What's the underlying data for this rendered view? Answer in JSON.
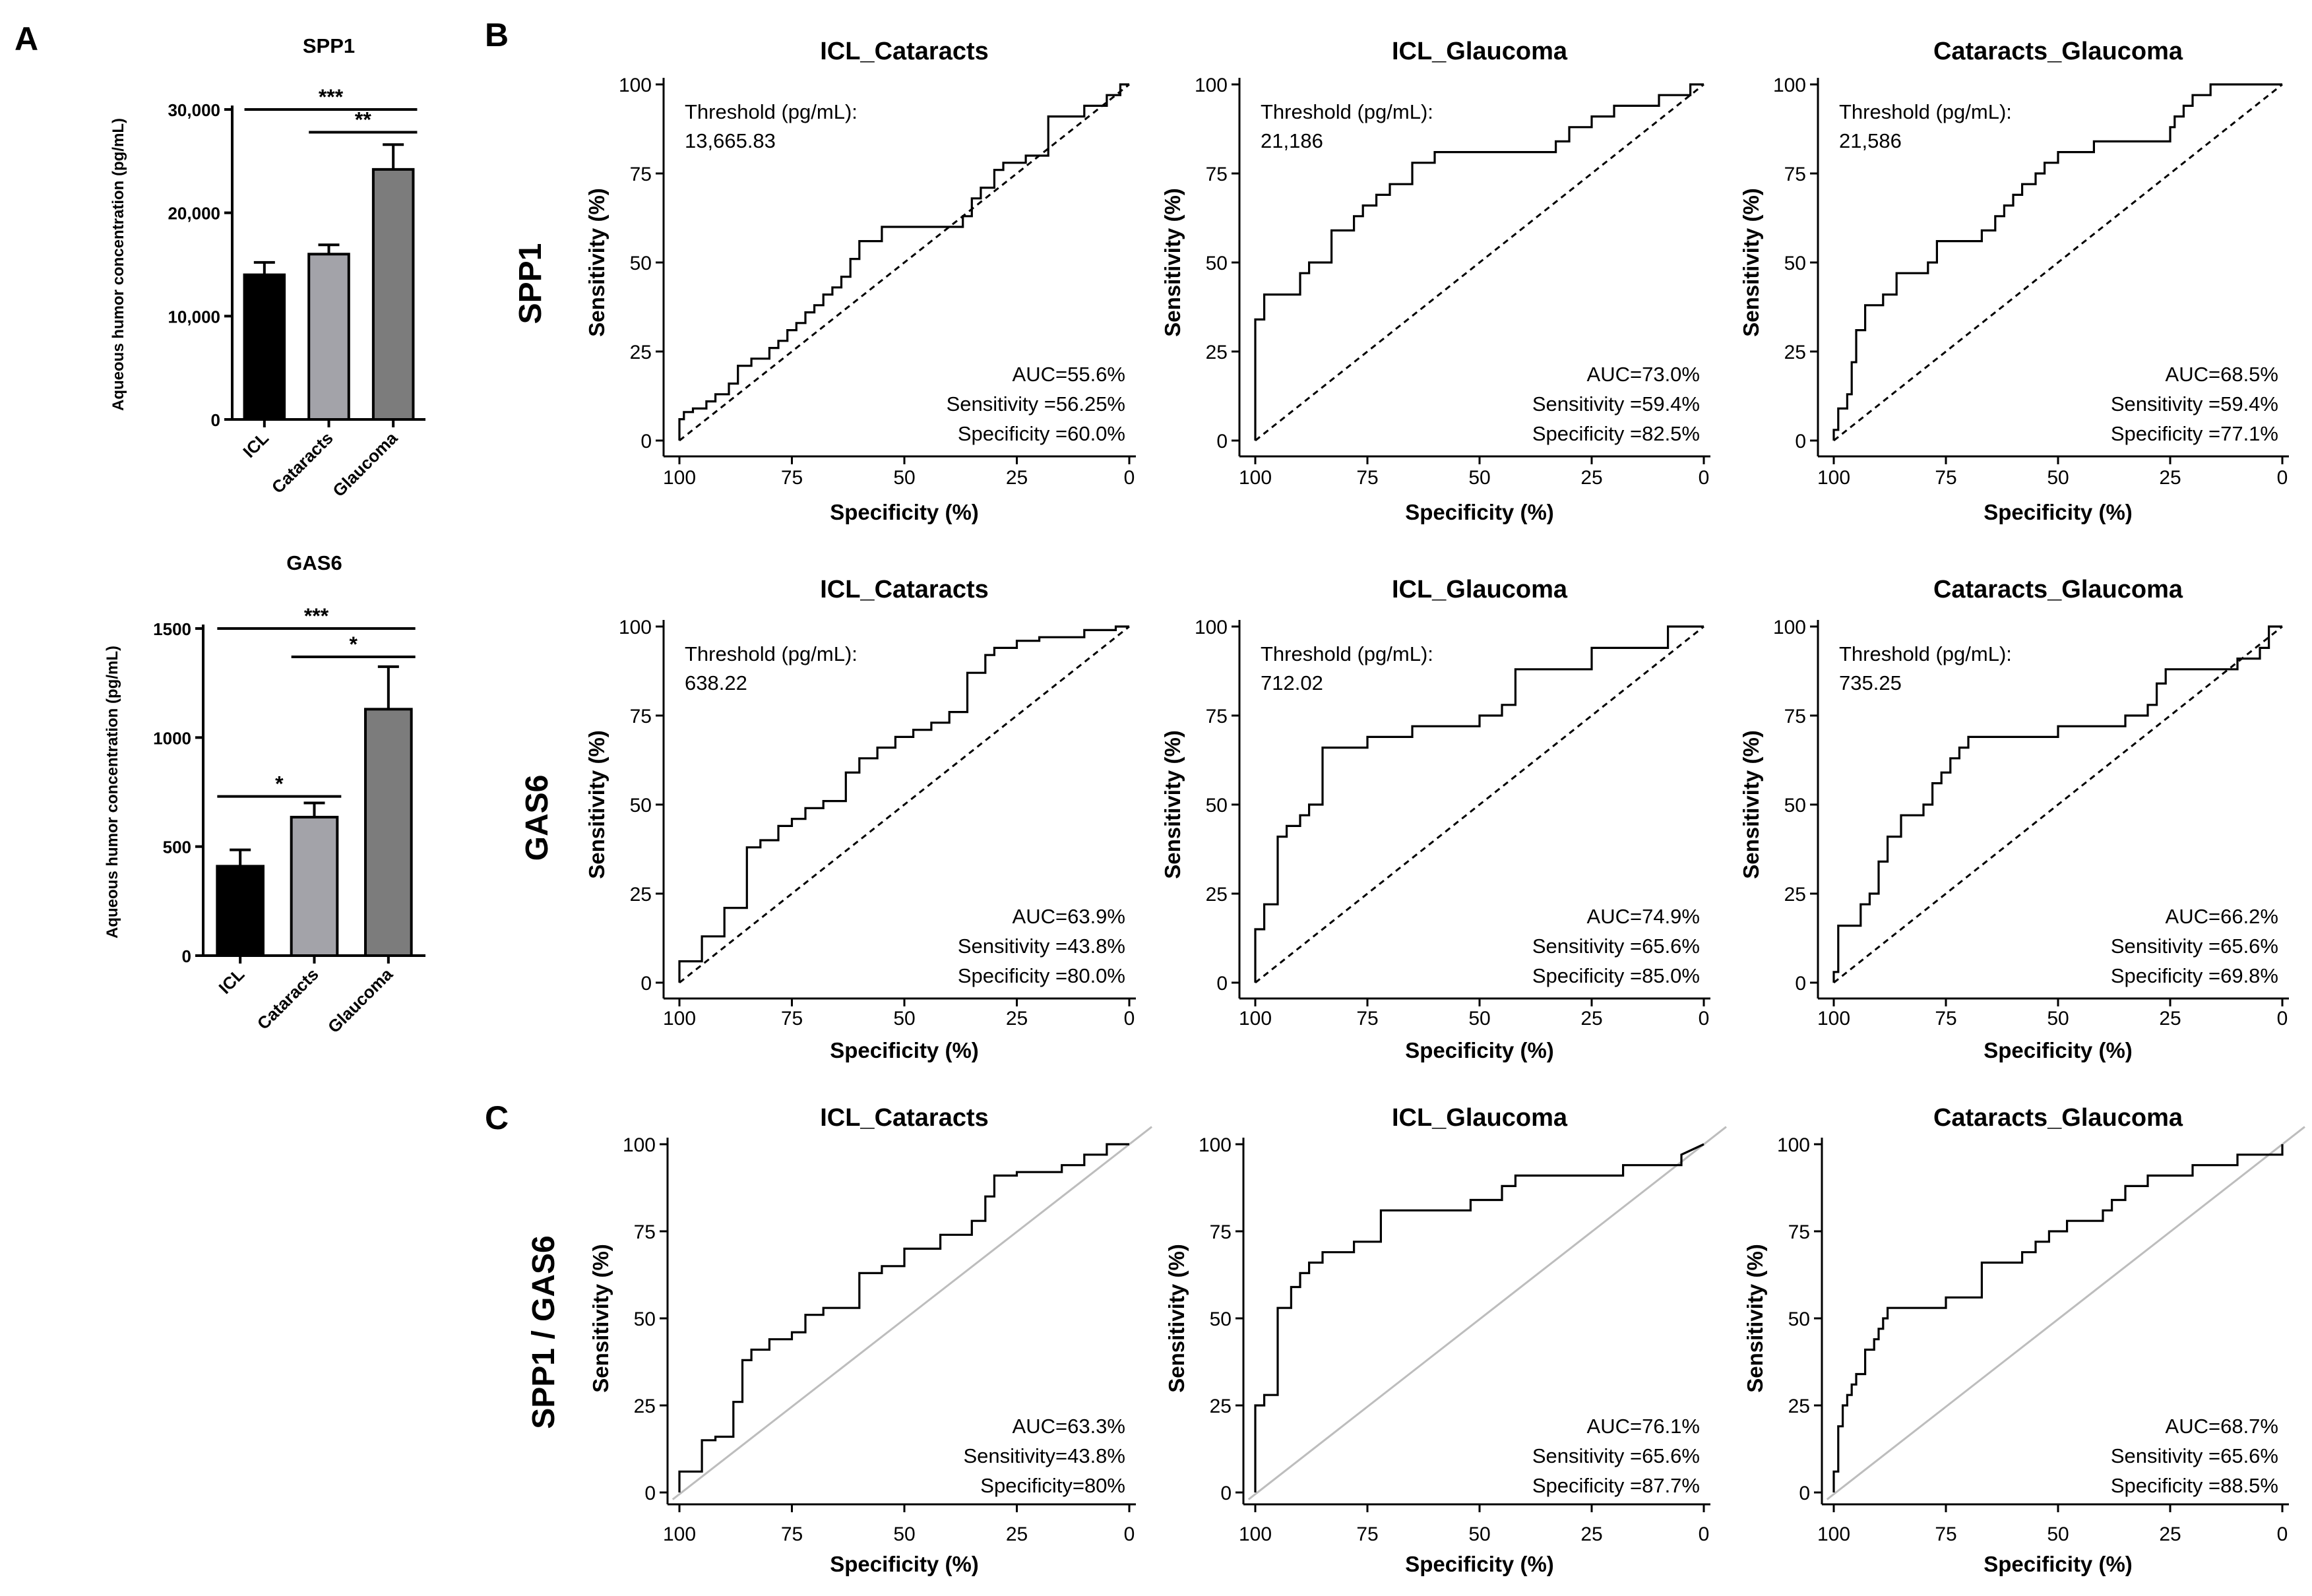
{
  "panel_labels": {
    "a": "A",
    "b": "B",
    "c": "C"
  },
  "row_labels": {
    "spp1": "SPP1",
    "gas6": "GAS6",
    "ratio": "SPP1 / GAS6"
  },
  "bar_axis_label": "Aqueous humor concentration (pg/mL)",
  "roc_x_label": "Specificity (%)",
  "roc_y_label": "Sensitivity (%)",
  "threshold_label": "Threshold (pg/mL):",
  "colors": {
    "icl": "#000000",
    "cataracts": "#a3a3a9",
    "glaucoma": "#7c7c7c",
    "reference_gray": "#bdbdbd",
    "line": "#000000"
  },
  "chart_data": [
    {
      "id": "bar-spp1",
      "type": "bar",
      "title": "SPP1",
      "categories": [
        "ICL",
        "Cataracts",
        "Glaucoma"
      ],
      "values": [
        14000,
        16000,
        24200
      ],
      "errors": [
        1200,
        900,
        2400
      ],
      "ylim": [
        0,
        30000
      ],
      "yticks": [
        0,
        10000,
        20000,
        30000
      ],
      "ytick_labels": [
        "0",
        "10,000",
        "20,000",
        "30,000"
      ],
      "ylabel": "Aqueous humor concentration (pg/mL)",
      "significance": [
        {
          "from": 0,
          "to": 2,
          "label": "***",
          "level": 30000
        },
        {
          "from": 1,
          "to": 2,
          "label": "**",
          "level": 27800
        }
      ]
    },
    {
      "id": "bar-gas6",
      "type": "bar",
      "title": "GAS6",
      "categories": [
        "ICL",
        "Cataracts",
        "Glaucoma"
      ],
      "values": [
        410,
        635,
        1130
      ],
      "errors": [
        75,
        65,
        195
      ],
      "ylim": [
        0,
        1500
      ],
      "yticks": [
        0,
        500,
        1000,
        1500
      ],
      "ytick_labels": [
        "0",
        "500",
        "1000",
        "1500"
      ],
      "ylabel": "Aqueous humor concentration (pg/mL)",
      "significance": [
        {
          "from": 0,
          "to": 2,
          "label": "***",
          "level": 1500
        },
        {
          "from": 1,
          "to": 2,
          "label": "*",
          "level": 1370
        },
        {
          "from": 0,
          "to": 1,
          "label": "*",
          "level": 730
        }
      ]
    },
    {
      "id": "roc-spp1-icl-cat",
      "type": "line",
      "title": "ICL_Cataracts",
      "row": "SPP1",
      "threshold": "13,665.83",
      "auc": "AUC=55.6%",
      "sensitivity": "Sensitivity =56.25%",
      "specificity": "Specificity =60.0%",
      "reference_style": "dashed",
      "x": [
        100,
        100,
        99,
        99,
        97,
        97,
        94,
        94,
        92,
        92,
        89,
        89,
        87,
        87,
        84,
        84,
        80,
        80,
        78,
        78,
        76,
        76,
        74,
        74,
        72,
        72,
        70,
        70,
        68,
        68,
        66,
        66,
        64,
        64,
        62,
        62,
        60,
        60,
        55,
        55,
        37,
        37,
        35,
        35,
        33,
        33,
        30,
        30,
        28,
        28,
        23,
        23,
        18,
        18,
        10,
        10,
        5,
        5,
        2,
        2,
        0
      ],
      "y": [
        0,
        6,
        6,
        8,
        8,
        9,
        9,
        11,
        11,
        13,
        13,
        16,
        16,
        21,
        21,
        23,
        23,
        26,
        26,
        28,
        28,
        31,
        31,
        33,
        33,
        36,
        36,
        38,
        38,
        41,
        41,
        43,
        43,
        46,
        46,
        51,
        51,
        56,
        56,
        60,
        60,
        63,
        63,
        68,
        68,
        71,
        71,
        76,
        76,
        78,
        78,
        80,
        80,
        91,
        91,
        94,
        94,
        97,
        97,
        100,
        100
      ],
      "xlim": [
        100,
        0
      ],
      "ylim": [
        0,
        100
      ]
    },
    {
      "id": "roc-spp1-icl-gla",
      "type": "line",
      "title": "ICL_Glaucoma",
      "row": "SPP1",
      "threshold": "21,186",
      "auc": "AUC=73.0%",
      "sensitivity": "Sensitivity =59.4%",
      "specificity": "Specificity =82.5%",
      "reference_style": "dashed",
      "x": [
        100,
        100,
        98,
        98,
        90,
        90,
        88,
        88,
        83,
        83,
        78,
        78,
        76,
        76,
        73,
        73,
        70,
        70,
        65,
        65,
        60,
        60,
        33,
        33,
        30,
        30,
        25,
        25,
        20,
        20,
        10,
        10,
        3,
        3,
        0
      ],
      "y": [
        0,
        34,
        34,
        41,
        41,
        47,
        47,
        50,
        50,
        59,
        59,
        63,
        63,
        66,
        66,
        69,
        69,
        72,
        72,
        78,
        78,
        81,
        81,
        84,
        84,
        88,
        88,
        91,
        91,
        94,
        94,
        97,
        97,
        100,
        100
      ],
      "xlim": [
        100,
        0
      ],
      "ylim": [
        0,
        100
      ]
    },
    {
      "id": "roc-spp1-cat-gla",
      "type": "line",
      "title": "Cataracts_Glaucoma",
      "row": "SPP1",
      "threshold": "21,586",
      "auc": "AUC=68.5%",
      "sensitivity": "Sensitivity =59.4%",
      "specificity": "Specificity =77.1%",
      "reference_style": "dashed",
      "x": [
        100,
        100,
        99,
        99,
        97,
        97,
        96,
        96,
        95,
        95,
        93,
        93,
        89,
        89,
        86,
        86,
        79,
        79,
        77,
        77,
        67,
        67,
        64,
        64,
        62,
        62,
        60,
        60,
        58,
        58,
        55,
        55,
        53,
        53,
        50,
        50,
        42,
        42,
        25,
        25,
        24,
        24,
        22,
        22,
        20,
        20,
        16,
        16,
        6,
        6,
        4,
        4,
        2,
        2,
        0
      ],
      "y": [
        0,
        3,
        3,
        9,
        9,
        13,
        13,
        22,
        22,
        31,
        31,
        38,
        38,
        41,
        41,
        47,
        47,
        50,
        50,
        56,
        56,
        59,
        59,
        63,
        63,
        66,
        66,
        69,
        69,
        72,
        72,
        75,
        75,
        78,
        78,
        81,
        81,
        84,
        84,
        88,
        88,
        91,
        91,
        94,
        94,
        97,
        97,
        100,
        100,
        100,
        100,
        100,
        100,
        100,
        100
      ],
      "xlim": [
        100,
        0
      ],
      "ylim": [
        0,
        100
      ]
    },
    {
      "id": "roc-gas6-icl-cat",
      "type": "line",
      "title": "ICL_Cataracts",
      "row": "GAS6",
      "threshold": "638.22",
      "auc": "AUC=63.9%",
      "sensitivity": "Sensitivity =43.8%",
      "specificity": "Specificity =80.0%",
      "reference_style": "dashed",
      "x": [
        100,
        100,
        95,
        95,
        90,
        90,
        85,
        85,
        82,
        82,
        78,
        78,
        75,
        75,
        72,
        72,
        68,
        68,
        63,
        63,
        60,
        60,
        56,
        56,
        52,
        52,
        48,
        48,
        44,
        44,
        40,
        40,
        36,
        36,
        32,
        32,
        30,
        30,
        25,
        25,
        20,
        20,
        10,
        10,
        3,
        3,
        0
      ],
      "y": [
        0,
        6,
        6,
        13,
        13,
        21,
        21,
        38,
        38,
        40,
        40,
        44,
        44,
        46,
        46,
        49,
        49,
        51,
        51,
        59,
        59,
        63,
        63,
        66,
        66,
        69,
        69,
        71,
        71,
        73,
        73,
        76,
        76,
        87,
        87,
        92,
        92,
        94,
        94,
        96,
        96,
        97,
        97,
        99,
        99,
        100,
        100
      ],
      "xlim": [
        100,
        0
      ],
      "ylim": [
        0,
        100
      ]
    },
    {
      "id": "roc-gas6-icl-gla",
      "type": "line",
      "title": "ICL_Glaucoma",
      "row": "GAS6",
      "threshold": "712.02",
      "auc": "AUC=74.9%",
      "sensitivity": "Sensitivity =65.6%",
      "specificity": "Specificity =85.0%",
      "reference_style": "dashed",
      "x": [
        100,
        100,
        98,
        98,
        95,
        95,
        93,
        93,
        90,
        90,
        88,
        88,
        85,
        85,
        75,
        75,
        65,
        65,
        50,
        50,
        45,
        45,
        42,
        42,
        25,
        25,
        8,
        8,
        0
      ],
      "y": [
        0,
        15,
        15,
        22,
        22,
        41,
        41,
        44,
        44,
        47,
        47,
        50,
        50,
        66,
        66,
        69,
        69,
        72,
        72,
        75,
        75,
        78,
        78,
        88,
        88,
        94,
        94,
        100,
        100
      ],
      "xlim": [
        100,
        0
      ],
      "ylim": [
        0,
        100
      ]
    },
    {
      "id": "roc-gas6-cat-gla",
      "type": "line",
      "title": "Cataracts_Glaucoma",
      "row": "GAS6",
      "threshold": "735.25",
      "auc": "AUC=66.2%",
      "sensitivity": "Sensitivity =65.6%",
      "specificity": "Specificity =69.8%",
      "reference_style": "dashed",
      "x": [
        100,
        100,
        99,
        99,
        94,
        94,
        92,
        92,
        90,
        90,
        88,
        88,
        85,
        85,
        80,
        80,
        78,
        78,
        76,
        76,
        74,
        74,
        72,
        72,
        70,
        70,
        50,
        50,
        35,
        35,
        30,
        30,
        28,
        28,
        26,
        26,
        10,
        10,
        5,
        5,
        3,
        3,
        0
      ],
      "y": [
        0,
        3,
        3,
        16,
        16,
        22,
        22,
        25,
        25,
        34,
        34,
        41,
        41,
        47,
        47,
        50,
        50,
        56,
        56,
        59,
        59,
        63,
        63,
        66,
        66,
        69,
        69,
        72,
        72,
        75,
        75,
        78,
        78,
        84,
        84,
        88,
        88,
        91,
        91,
        94,
        94,
        100,
        100
      ],
      "xlim": [
        100,
        0
      ],
      "ylim": [
        0,
        100
      ]
    },
    {
      "id": "roc-ratio-icl-cat",
      "type": "line",
      "title": "ICL_Cataracts",
      "row": "SPP1 / GAS6",
      "threshold": null,
      "auc": "AUC=63.3%",
      "sensitivity": "Sensitivity=43.8%",
      "specificity": "Specificity=80%",
      "reference_style": "solid",
      "x": [
        100,
        100,
        95,
        95,
        92,
        92,
        88,
        88,
        86,
        86,
        84,
        84,
        80,
        80,
        75,
        75,
        72,
        72,
        68,
        68,
        60,
        60,
        55,
        55,
        50,
        50,
        42,
        42,
        35,
        35,
        32,
        32,
        30,
        30,
        25,
        25,
        15,
        15,
        10,
        10,
        5,
        5,
        0
      ],
      "y": [
        0,
        6,
        6,
        15,
        15,
        16,
        16,
        26,
        26,
        38,
        38,
        41,
        41,
        44,
        44,
        46,
        46,
        51,
        51,
        53,
        53,
        63,
        63,
        65,
        65,
        70,
        70,
        74,
        74,
        78,
        78,
        85,
        85,
        91,
        91,
        92,
        92,
        94,
        94,
        97,
        97,
        100,
        100
      ],
      "xlim": [
        100,
        0
      ],
      "ylim": [
        0,
        100
      ]
    },
    {
      "id": "roc-ratio-icl-gla",
      "type": "line",
      "title": "ICL_Glaucoma",
      "row": "SPP1 / GAS6",
      "threshold": null,
      "auc": "AUC=76.1%",
      "sensitivity": "Sensitivity =65.6%",
      "specificity": "Specificity =87.7%",
      "reference_style": "solid",
      "x": [
        100,
        100,
        98,
        98,
        95,
        95,
        92,
        92,
        90,
        90,
        88,
        88,
        85,
        85,
        78,
        78,
        72,
        72,
        52,
        52,
        45,
        45,
        42,
        42,
        18,
        18,
        5,
        5,
        0
      ],
      "y": [
        0,
        25,
        25,
        28,
        28,
        53,
        53,
        59,
        59,
        63,
        63,
        66,
        66,
        69,
        69,
        72,
        72,
        81,
        81,
        84,
        84,
        88,
        88,
        91,
        91,
        94,
        94,
        97,
        100
      ],
      "xlim": [
        100,
        0
      ],
      "ylim": [
        0,
        100
      ]
    },
    {
      "id": "roc-ratio-cat-gla",
      "type": "line",
      "title": "Cataracts_Glaucoma",
      "row": "SPP1 / GAS6",
      "threshold": null,
      "auc": "AUC=68.7%",
      "sensitivity": "Sensitivity =65.6%",
      "specificity": "Specificity =88.5%",
      "reference_style": "solid",
      "x": [
        100,
        100,
        99,
        99,
        98,
        98,
        97,
        97,
        96,
        96,
        95,
        95,
        93,
        93,
        91,
        91,
        90,
        90,
        89,
        89,
        88,
        88,
        75,
        75,
        67,
        67,
        58,
        58,
        55,
        55,
        52,
        52,
        48,
        48,
        40,
        40,
        38,
        38,
        35,
        35,
        30,
        30,
        20,
        20,
        10,
        10,
        0,
        0
      ],
      "y": [
        0,
        6,
        6,
        19,
        19,
        25,
        25,
        28,
        28,
        31,
        31,
        34,
        34,
        41,
        41,
        44,
        44,
        47,
        47,
        50,
        50,
        53,
        53,
        56,
        56,
        66,
        66,
        69,
        69,
        72,
        72,
        75,
        75,
        78,
        78,
        81,
        81,
        84,
        84,
        88,
        88,
        91,
        91,
        94,
        94,
        97,
        97,
        100
      ],
      "xlim": [
        100,
        0
      ],
      "ylim": [
        0,
        100
      ]
    }
  ]
}
